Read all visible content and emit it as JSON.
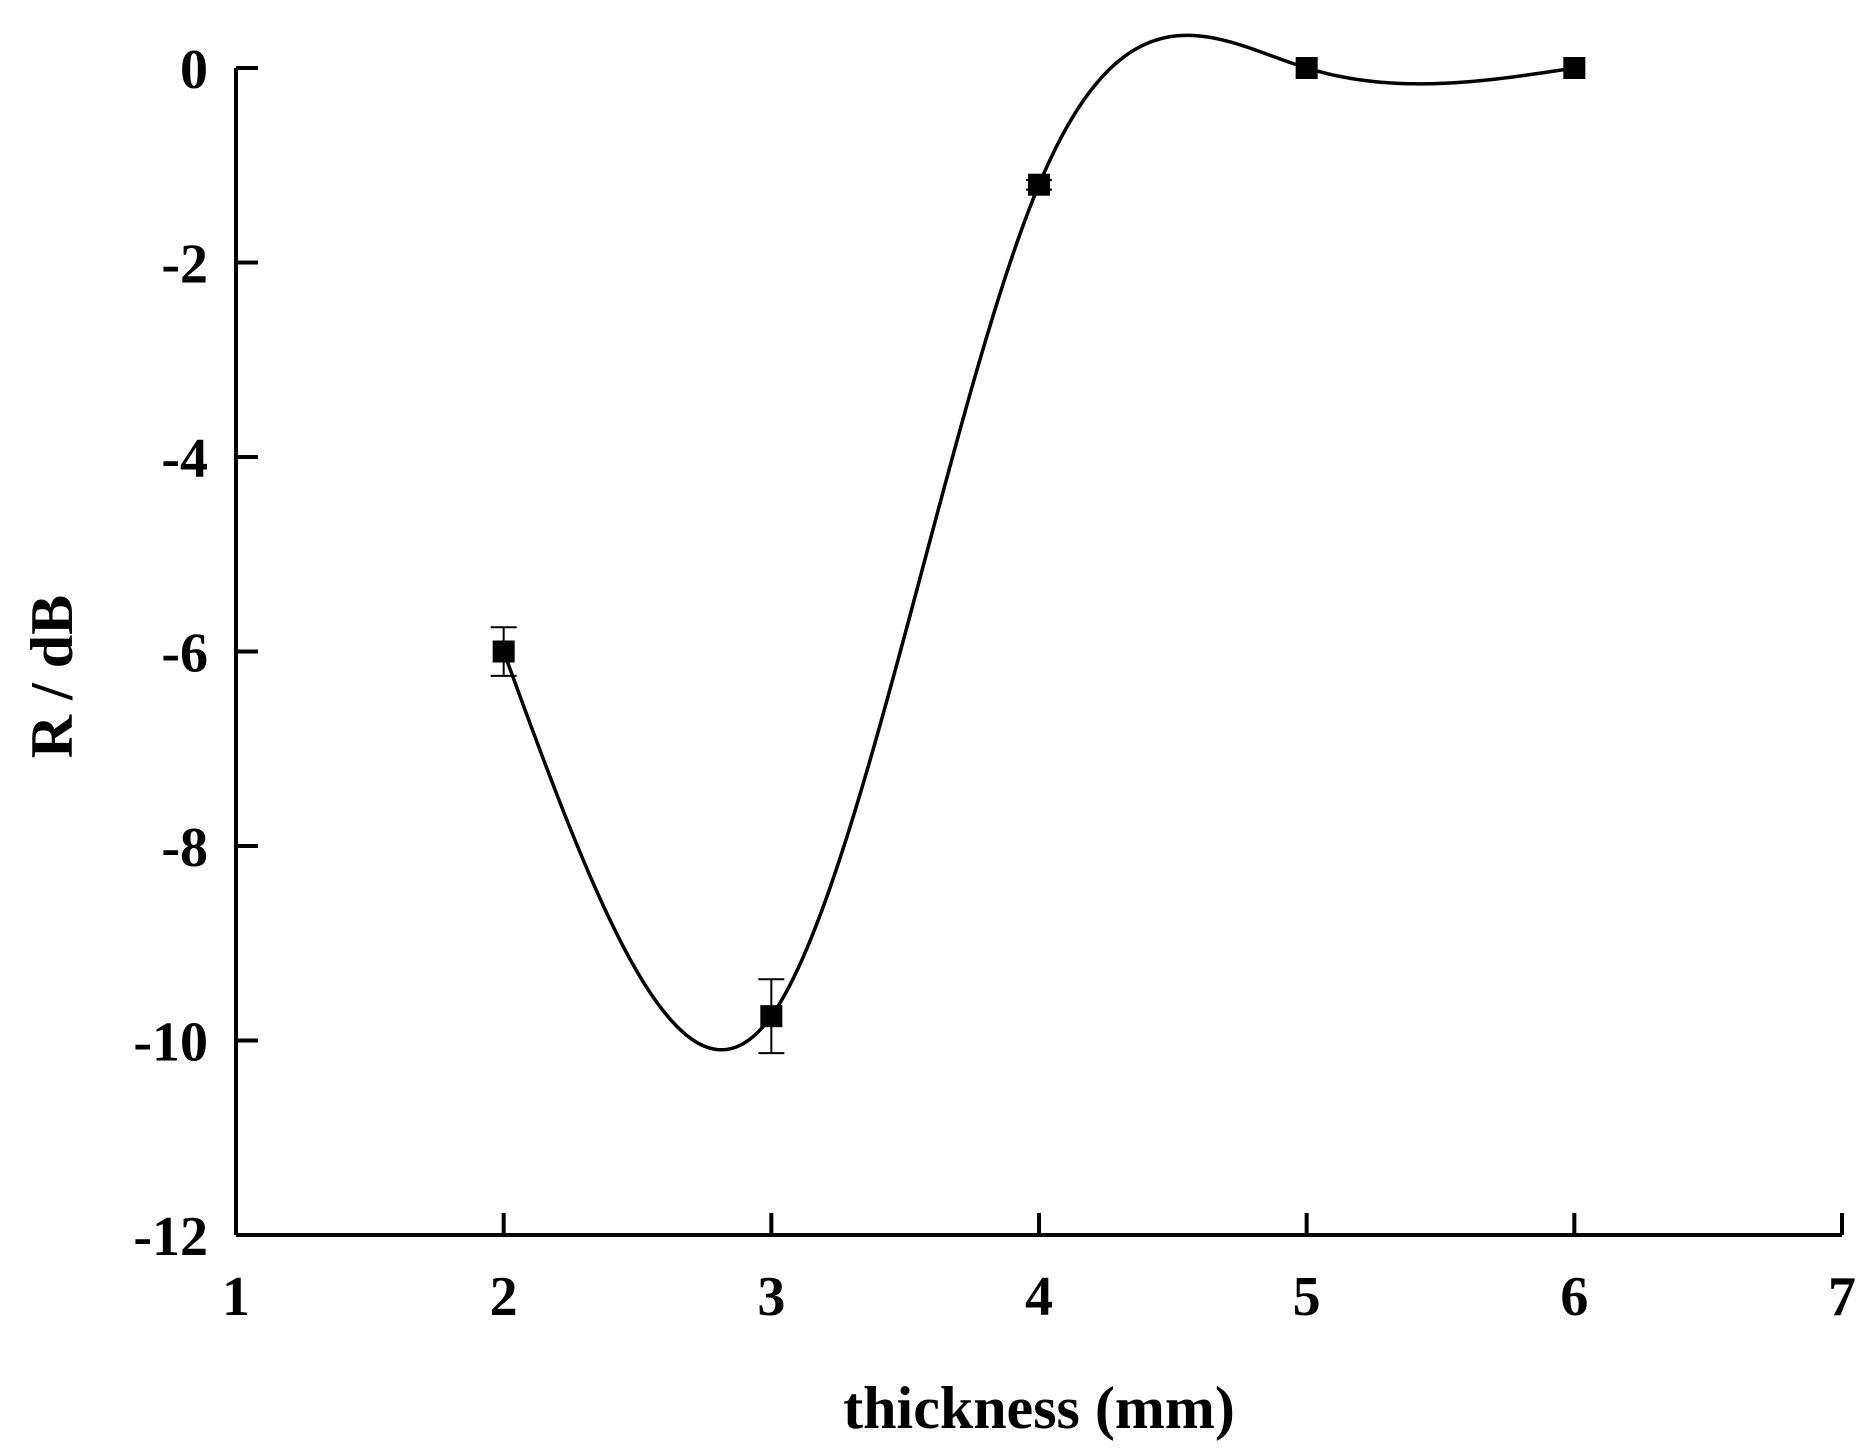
{
  "chart_data": {
    "type": "line",
    "title": "",
    "xlabel": "thickness (mm)",
    "ylabel": "R / dB",
    "xlim": [
      1,
      7
    ],
    "ylim": [
      -12,
      0
    ],
    "x_ticks": [
      1,
      2,
      3,
      4,
      5,
      6,
      7
    ],
    "y_ticks": [
      0,
      -2,
      -4,
      -6,
      -8,
      -10,
      -12
    ],
    "x_tick_labels": [
      "1",
      "2",
      "3",
      "4",
      "5",
      "6",
      "7"
    ],
    "y_tick_labels": [
      "0",
      "-2",
      "-4",
      "-6",
      "-8",
      "-10",
      "-12"
    ],
    "grid": false,
    "legend": "none",
    "series": [
      {
        "marker": "square",
        "line": "smooth",
        "color": "#000000",
        "points": [
          {
            "x": 2,
            "y": -6.0,
            "err": 0.25
          },
          {
            "x": 3,
            "y": -9.75,
            "err": 0.38
          },
          {
            "x": 4,
            "y": -1.2,
            "err": 0.05
          },
          {
            "x": 5,
            "y": 0.0,
            "err": 0.0
          },
          {
            "x": 6,
            "y": 0.0,
            "err": 0.0
          }
        ]
      }
    ]
  }
}
